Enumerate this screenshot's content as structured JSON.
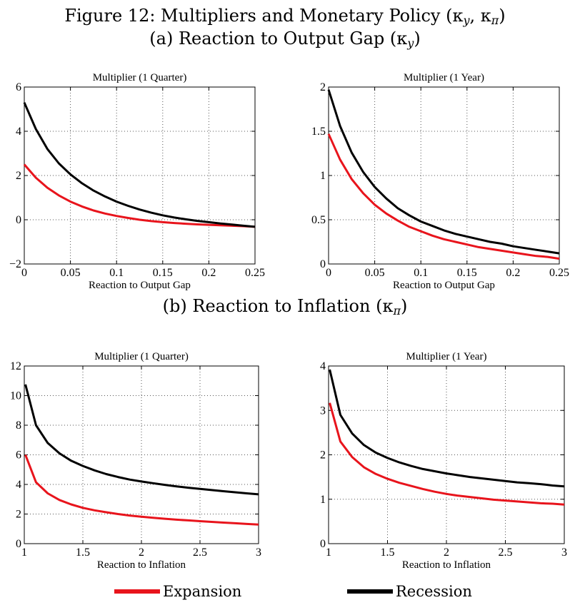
{
  "figure": {
    "title": "Figure 12: Multipliers and Monetary Policy (κ",
    "title_full": "Figure 12: Multipliers and Monetary Policy (κy, κπ)",
    "panel_a_title": "(a) Reaction to Output Gap (κy)",
    "panel_b_title": "(b) Reaction to Inflation (κπ)"
  },
  "colors": {
    "expansion": "#e8141c",
    "recession": "#000000",
    "grid": "#555555"
  },
  "legend": [
    {
      "label": "Expansion",
      "color": "#e8141c"
    },
    {
      "label": "Recession",
      "color": "#000000"
    }
  ],
  "chart_data": [
    {
      "type": "line",
      "title": "Multiplier (1 Quarter)",
      "xlabel": "Reaction to Output Gap",
      "xlim": [
        0,
        0.25
      ],
      "ylim": [
        -2,
        6
      ],
      "xticks": [
        0,
        0.05,
        0.1,
        0.15,
        0.2,
        0.25
      ],
      "xticklabels": [
        "0",
        "0.05",
        "0.1",
        "0.15",
        "0.2",
        "0.25"
      ],
      "yticks": [
        -2,
        0,
        2,
        4,
        6
      ],
      "yticklabels": [
        "−2",
        "0",
        "2",
        "4",
        "6"
      ],
      "grid": true,
      "x": [
        0,
        0.0125,
        0.025,
        0.0375,
        0.05,
        0.0625,
        0.075,
        0.0875,
        0.1,
        0.1125,
        0.125,
        0.1375,
        0.15,
        0.1625,
        0.175,
        0.1875,
        0.2,
        0.2125,
        0.225,
        0.2375,
        0.25
      ],
      "series": [
        {
          "name": "Expansion",
          "values": [
            2.5,
            1.9,
            1.45,
            1.1,
            0.82,
            0.6,
            0.42,
            0.28,
            0.17,
            0.08,
            0.0,
            -0.06,
            -0.11,
            -0.15,
            -0.18,
            -0.21,
            -0.23,
            -0.25,
            -0.27,
            -0.29,
            -0.32
          ]
        },
        {
          "name": "Recession",
          "values": [
            5.3,
            4.1,
            3.2,
            2.55,
            2.05,
            1.65,
            1.32,
            1.05,
            0.82,
            0.63,
            0.46,
            0.32,
            0.2,
            0.1,
            0.02,
            -0.05,
            -0.11,
            -0.17,
            -0.22,
            -0.27,
            -0.32
          ]
        }
      ]
    },
    {
      "type": "line",
      "title": "Multiplier (1 Year)",
      "xlabel": "Reaction to Output Gap",
      "xlim": [
        0,
        0.25
      ],
      "ylim": [
        0,
        2
      ],
      "xticks": [
        0,
        0.05,
        0.1,
        0.15,
        0.2,
        0.25
      ],
      "xticklabels": [
        "0",
        "0.05",
        "0.1",
        "0.15",
        "0.2",
        "0.25"
      ],
      "yticks": [
        0,
        0.5,
        1,
        1.5,
        2
      ],
      "yticklabels": [
        "0",
        "0.5",
        "1",
        "1.5",
        "2"
      ],
      "grid": true,
      "x": [
        0,
        0.0125,
        0.025,
        0.0375,
        0.05,
        0.0625,
        0.075,
        0.0875,
        0.1,
        0.1125,
        0.125,
        0.1375,
        0.15,
        0.1625,
        0.175,
        0.1875,
        0.2,
        0.2125,
        0.225,
        0.2375,
        0.25
      ],
      "series": [
        {
          "name": "Expansion",
          "values": [
            1.47,
            1.18,
            0.96,
            0.8,
            0.67,
            0.57,
            0.49,
            0.42,
            0.37,
            0.32,
            0.28,
            0.25,
            0.22,
            0.19,
            0.17,
            0.15,
            0.13,
            0.11,
            0.09,
            0.08,
            0.06
          ]
        },
        {
          "name": "Recession",
          "values": [
            1.97,
            1.56,
            1.26,
            1.04,
            0.87,
            0.74,
            0.63,
            0.55,
            0.48,
            0.43,
            0.38,
            0.34,
            0.31,
            0.28,
            0.25,
            0.23,
            0.2,
            0.18,
            0.16,
            0.14,
            0.12
          ]
        }
      ]
    },
    {
      "type": "line",
      "title": "Multiplier (1 Quarter)",
      "xlabel": "Reaction to Inflation",
      "xlim": [
        1,
        3
      ],
      "ylim": [
        0,
        12
      ],
      "xticks": [
        1,
        1.5,
        2,
        2.5,
        3
      ],
      "xticklabels": [
        "1",
        "1.5",
        "2",
        "2.5",
        "3"
      ],
      "yticks": [
        0,
        2,
        4,
        6,
        8,
        10,
        12
      ],
      "yticklabels": [
        "0",
        "2",
        "4",
        "6",
        "8",
        "10",
        "12"
      ],
      "grid": true,
      "x": [
        1.01,
        1.1,
        1.2,
        1.3,
        1.4,
        1.5,
        1.6,
        1.7,
        1.8,
        1.9,
        2.0,
        2.1,
        2.2,
        2.3,
        2.4,
        2.5,
        2.6,
        2.7,
        2.8,
        2.9,
        3.0
      ],
      "series": [
        {
          "name": "Expansion",
          "values": [
            6.0,
            4.15,
            3.4,
            2.95,
            2.65,
            2.42,
            2.25,
            2.12,
            2.0,
            1.9,
            1.82,
            1.75,
            1.68,
            1.62,
            1.57,
            1.52,
            1.47,
            1.42,
            1.38,
            1.33,
            1.29
          ]
        },
        {
          "name": "Recession",
          "values": [
            10.75,
            8.0,
            6.8,
            6.1,
            5.6,
            5.25,
            4.95,
            4.7,
            4.5,
            4.33,
            4.2,
            4.08,
            3.97,
            3.87,
            3.78,
            3.7,
            3.62,
            3.54,
            3.47,
            3.4,
            3.33
          ]
        }
      ]
    },
    {
      "type": "line",
      "title": "Multiplier (1 Year)",
      "xlabel": "Reaction to Inflation",
      "xlim": [
        1,
        3
      ],
      "ylim": [
        0,
        4
      ],
      "xticks": [
        1,
        1.5,
        2,
        2.5,
        3
      ],
      "xticklabels": [
        "1",
        "1.5",
        "2",
        "2.5",
        "3"
      ],
      "yticks": [
        0,
        1,
        2,
        3,
        4
      ],
      "yticklabels": [
        "0",
        "1",
        "2",
        "3",
        "4"
      ],
      "grid": true,
      "x": [
        1.01,
        1.1,
        1.2,
        1.3,
        1.4,
        1.5,
        1.6,
        1.7,
        1.8,
        1.9,
        2.0,
        2.1,
        2.2,
        2.3,
        2.4,
        2.5,
        2.6,
        2.7,
        2.8,
        2.9,
        3.0
      ],
      "series": [
        {
          "name": "Expansion",
          "values": [
            3.17,
            2.3,
            1.95,
            1.72,
            1.57,
            1.46,
            1.37,
            1.3,
            1.23,
            1.17,
            1.12,
            1.08,
            1.05,
            1.02,
            0.99,
            0.97,
            0.95,
            0.93,
            0.91,
            0.9,
            0.88
          ]
        },
        {
          "name": "Recession",
          "values": [
            3.92,
            2.9,
            2.48,
            2.22,
            2.05,
            1.93,
            1.83,
            1.75,
            1.68,
            1.63,
            1.58,
            1.54,
            1.5,
            1.47,
            1.44,
            1.41,
            1.38,
            1.36,
            1.34,
            1.31,
            1.29
          ]
        }
      ]
    }
  ]
}
